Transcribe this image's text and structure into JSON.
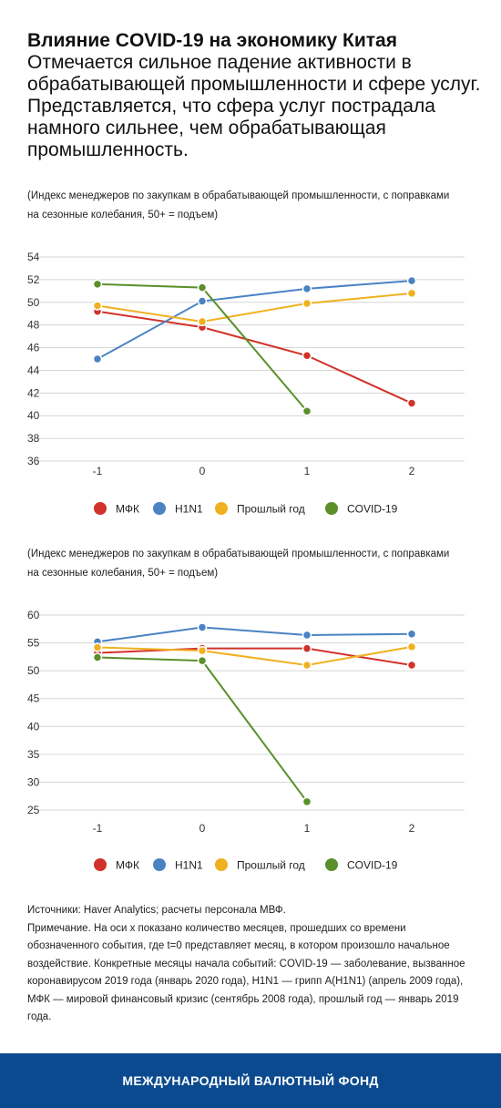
{
  "header": {
    "title": "Влияние COVID-19 на экономику Китая",
    "subtitle": "Отмечается сильное падение активности в обрабатывающей промышленности и сфере услуг. Представляется, что сфера услуг пострадала намного сильнее, чем обрабатывающая промышленность."
  },
  "colors": {
    "МФК": "#d1322a",
    "H1N1": "#4a82c3",
    "Прошлый год": "#f0b120",
    "COVID-19": "#5a8f2a",
    "footer": "#0b4a8f"
  },
  "chart_data": [
    {
      "type": "line",
      "note": "(Индекс менеджеров по закупкам в обрабатывающей промышленности, с поправками на сезонные колебания, 50+ = подъем)",
      "x": [
        -1,
        0,
        1,
        2
      ],
      "x_tick_labels": [
        "-1",
        "0",
        "1",
        "2"
      ],
      "y_ticks": [
        36,
        38,
        40,
        42,
        44,
        46,
        48,
        50,
        52,
        54
      ],
      "ylim": [
        36,
        54
      ],
      "grid": true,
      "legend_position": "bottom",
      "series": [
        {
          "name": "МФК",
          "values": [
            49.2,
            47.8,
            45.3,
            41.1
          ]
        },
        {
          "name": "H1N1",
          "values": [
            45.0,
            50.1,
            51.2,
            51.9
          ]
        },
        {
          "name": "Прошлый год",
          "values": [
            49.7,
            48.3,
            49.9,
            50.8
          ]
        },
        {
          "name": "COVID-19",
          "values": [
            51.6,
            51.3,
            40.4,
            null
          ]
        }
      ]
    },
    {
      "type": "line",
      "note": "(Индекс менеджеров по закупкам в обрабатывающей промышленности, с поправками на сезонные колебания, 50+ = подъем)",
      "x": [
        -1,
        0,
        1,
        2
      ],
      "x_tick_labels": [
        "-1",
        "0",
        "1",
        "2"
      ],
      "y_ticks": [
        25,
        30,
        35,
        40,
        45,
        50,
        55,
        60
      ],
      "ylim": [
        25,
        60
      ],
      "grid": true,
      "legend_position": "bottom",
      "series": [
        {
          "name": "МФК",
          "values": [
            53.2,
            54.0,
            54.0,
            51.0
          ]
        },
        {
          "name": "H1N1",
          "values": [
            55.2,
            57.8,
            56.4,
            56.6
          ]
        },
        {
          "name": "Прошлый год",
          "values": [
            54.2,
            53.6,
            51.0,
            54.3
          ]
        },
        {
          "name": "COVID-19",
          "values": [
            52.4,
            51.8,
            26.5,
            null
          ]
        }
      ]
    }
  ],
  "sources": {
    "line1": "Источники: Haver Analytics; расчеты персонала МВФ.",
    "line2": "Примечание. На оси x показано количество месяцев, прошедших со времени обозначенного события, где t=0 представляет месяц, в котором произошло начальное воздействие. Конкретные месяцы начала событий: COVID-19 — заболевание, вызванное коронавирусом 2019 года (январь 2020 года), H1N1 — грипп A(H1N1) (апрель 2009 года), МФК — мировой финансовый кризис (сентябрь 2008 года), прошлый год — январь 2019 года."
  },
  "footer": {
    "label": "МЕЖДУНАРОДНЫЙ ВАЛЮТНЫЙ ФОНД"
  }
}
